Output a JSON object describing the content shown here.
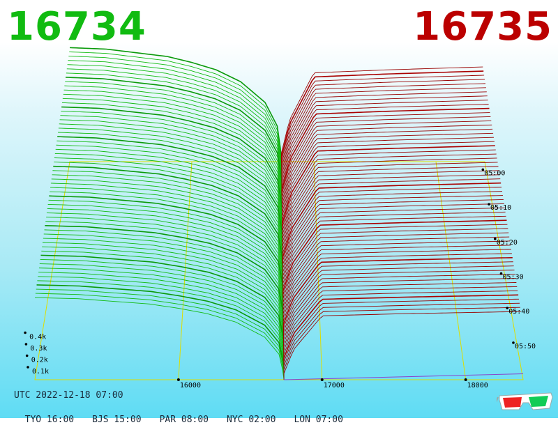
{
  "header": {
    "left_price": "16734",
    "right_price": "16735",
    "left_color": "#11bb11",
    "right_color": "#bb0000"
  },
  "footer": {
    "utc": "UTC 2022-12-18 07:00",
    "cities": [
      "TYO 16:00",
      "BJS 15:00",
      "PAR 08:00",
      "NYC 02:00",
      "LON 07:00"
    ]
  },
  "icons": {
    "glasses": "3d-glasses-icon"
  },
  "chart_data": {
    "type": "area",
    "title": "",
    "x_ticks": [
      "16000",
      "17000",
      "18000"
    ],
    "z_ticks": [
      "0.1k",
      "0.2k",
      "0.3k",
      "0.4k"
    ],
    "time_ticks": [
      "05:00",
      "05:10",
      "05:20",
      "05:30",
      "05:40",
      "05:50"
    ],
    "price_range": [
      15000,
      18400
    ],
    "depth_range": [
      0,
      0.4
    ],
    "mid_price": 16734.5,
    "n_snapshots": 60,
    "bid_color": "#11bb11",
    "ask_color": "#990000",
    "grid_color": "#dddd00",
    "series": [
      {
        "name": "",
        "side": "bid",
        "profile_price": [
          15000,
          15300,
          15700,
          15800,
          16000,
          16200,
          16400,
          16600,
          16700,
          16734
        ],
        "profile_depth": [
          0.385,
          0.38,
          0.36,
          0.355,
          0.335,
          0.31,
          0.27,
          0.2,
          0.12,
          0.02
        ]
      },
      {
        "name": "",
        "side": "ask",
        "profile_price": [
          16735,
          16800,
          16900,
          17000,
          17300,
          17600,
          18000,
          18400
        ],
        "profile_depth": [
          0.03,
          0.14,
          0.22,
          0.3,
          0.305,
          0.31,
          0.315,
          0.32
        ]
      }
    ]
  }
}
